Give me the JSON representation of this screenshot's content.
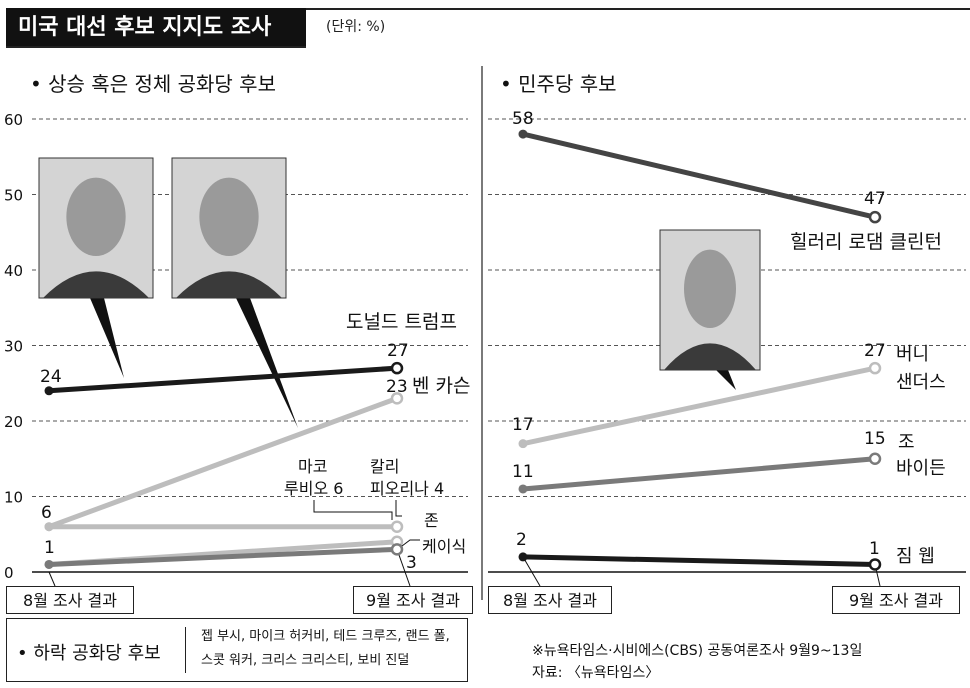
{
  "header": {
    "title": "미국 대선 후보 지지도 조사",
    "unit": "(단위: %)"
  },
  "panels": {
    "left_title": "• 상승 혹은 정체 공화당 후보",
    "right_title": "• 민주당 후보"
  },
  "labels": {
    "aug": "8월 조사 결과",
    "sep": "9월 조사 결과"
  },
  "declined": {
    "heading": "• 하락 공화당 후보",
    "names": "젭 부시, 마이크 허커비, 테드 크루즈, 랜드 폴, 스콧 워커, 크리스 크리스티, 보비 진덜"
  },
  "source": {
    "line1": "※뉴욕타임스·시비에스(CBS) 공동여론조사 9월9~13일",
    "line2": "자료: 〈뉴욕타임스〉"
  },
  "colors": {
    "black": "#1a1a1a",
    "light_gray": "#bdbdbd",
    "mid_gray": "#7a7a7a",
    "dark_gray": "#444444",
    "grid": "#555555"
  },
  "chart_data": [
    {
      "type": "line",
      "title": "상승 혹은 정체 공화당 후보",
      "categories": [
        "8월 조사 결과",
        "9월 조사 결과"
      ],
      "ylim": [
        0,
        60
      ],
      "yticks": [
        0,
        10,
        20,
        30,
        40,
        50,
        60
      ],
      "grid": true,
      "series": [
        {
          "name": "도널드 트럼프",
          "values": [
            24,
            27
          ],
          "color": "#1a1a1a"
        },
        {
          "name": "벤 카슨",
          "values": [
            6,
            23
          ],
          "color": "#bdbdbd"
        },
        {
          "name": "마코 루비오",
          "values": [
            6,
            6
          ],
          "color": "#bdbdbd"
        },
        {
          "name": "칼리 피오리나",
          "values": [
            1,
            4
          ],
          "color": "#bdbdbd"
        },
        {
          "name": "존 케이식",
          "values": [
            1,
            3
          ],
          "color": "#7a7a7a"
        }
      ]
    },
    {
      "type": "line",
      "title": "민주당 후보",
      "categories": [
        "8월 조사 결과",
        "9월 조사 결과"
      ],
      "ylim": [
        0,
        60
      ],
      "grid": true,
      "series": [
        {
          "name": "힐러리 로댐 클린턴",
          "values": [
            58,
            47
          ],
          "color": "#444444"
        },
        {
          "name": "버니 샌더스",
          "values": [
            17,
            27
          ],
          "color": "#bdbdbd"
        },
        {
          "name": "조 바이든",
          "values": [
            11,
            15
          ],
          "color": "#7a7a7a"
        },
        {
          "name": "짐 웹",
          "values": [
            2,
            1
          ],
          "color": "#1a1a1a"
        }
      ]
    }
  ]
}
